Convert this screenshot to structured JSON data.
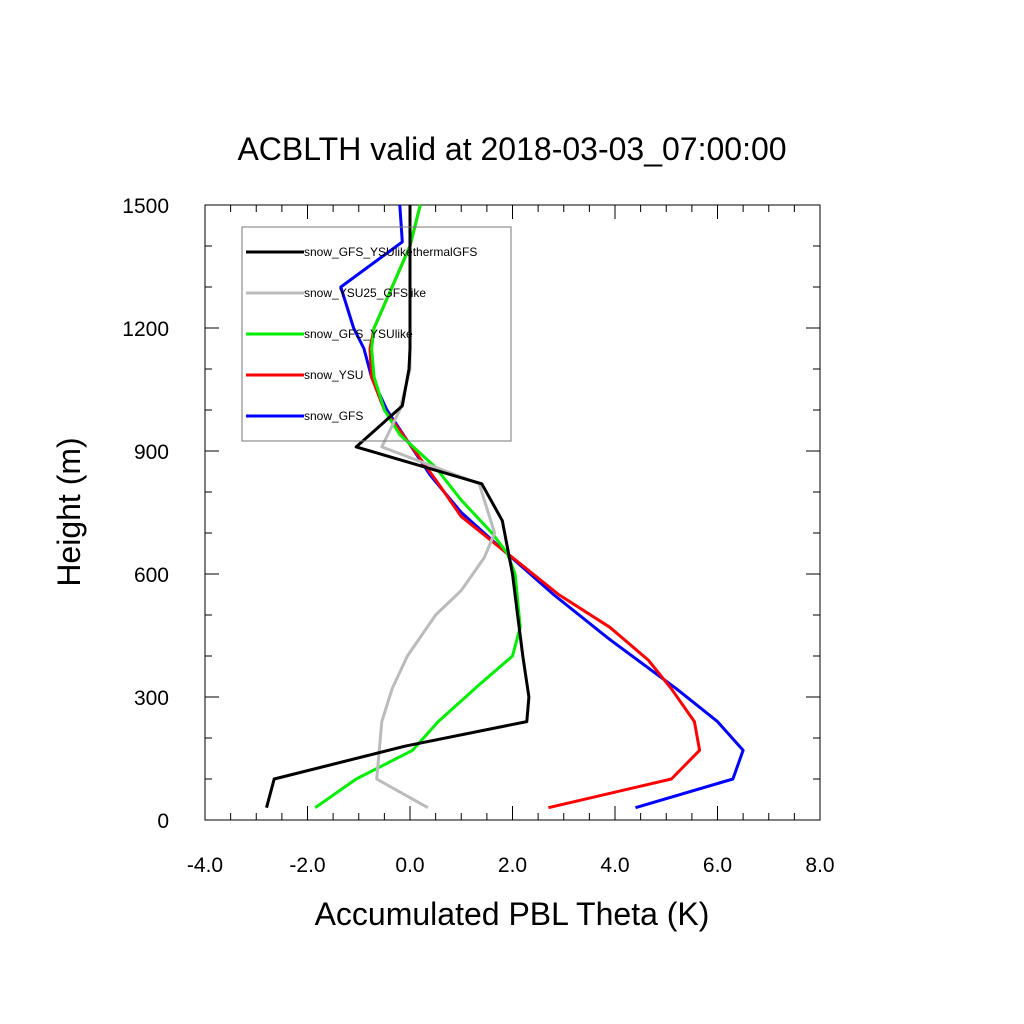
{
  "chart_data": {
    "type": "line",
    "title": "ACBLTH valid at 2018-03-03_07:00:00",
    "xlabel": "Accumulated PBL Theta (K)",
    "ylabel": "Height (m)",
    "xlim": [
      -4.0,
      8.0
    ],
    "ylim": [
      0,
      1500
    ],
    "xticks": [
      "-4.0",
      "-2.0",
      "0.0",
      "2.0",
      "4.0",
      "6.0",
      "8.0"
    ],
    "yticks": [
      "0",
      "300",
      "600",
      "900",
      "1200",
      "1500"
    ],
    "grid": false,
    "legend_position": "top-left",
    "series": [
      {
        "name": "snow_GFS_YSUlikethermalGFS",
        "color": "#000000",
        "x": [
          -2.8,
          -2.65,
          -0.1,
          2.28,
          2.32,
          2.2,
          2.1,
          2.0,
          1.8,
          1.4,
          -1.05,
          -0.15,
          -0.02,
          0.0,
          0.0,
          0.0,
          0.0,
          0.0,
          0.0
        ],
        "y": [
          30,
          100,
          180,
          240,
          300,
          400,
          500,
          600,
          730,
          820,
          910,
          1010,
          1100,
          1150,
          1200,
          1300,
          1400,
          1450,
          1500
        ]
      },
      {
        "name": "snow_YSU25_GFSlike",
        "color": "#bbbbbb",
        "x": [
          0.35,
          -0.65,
          -0.55,
          -0.35,
          -0.05,
          0.5,
          1.0,
          1.45,
          1.65,
          1.35,
          -0.55,
          -0.2,
          0.0,
          0.0,
          0.0,
          0.0,
          0.0
        ],
        "y": [
          30,
          100,
          240,
          320,
          400,
          500,
          560,
          640,
          700,
          820,
          910,
          1000,
          1100,
          1200,
          1300,
          1400,
          1500
        ]
      },
      {
        "name": "snow_GFS_YSUlike",
        "color": "#00ee00",
        "x": [
          -1.85,
          -1.05,
          0.05,
          0.55,
          1.35,
          2.0,
          2.15,
          2.05,
          1.9,
          1.6,
          1.0,
          0.5,
          -0.2,
          -0.5,
          -0.7,
          -0.75,
          -0.7,
          -0.35,
          0.0,
          0.2
        ],
        "y": [
          30,
          100,
          170,
          240,
          330,
          400,
          470,
          600,
          650,
          700,
          780,
          860,
          940,
          1000,
          1080,
          1150,
          1200,
          1300,
          1400,
          1500
        ]
      },
      {
        "name": "snow_YSU",
        "color": "#ff0000",
        "x": [
          2.7,
          5.1,
          5.65,
          5.55,
          5.1,
          4.65,
          3.9,
          2.9,
          2.0,
          1.0,
          0.5,
          -0.2,
          -0.5,
          -0.75,
          -0.78,
          -0.7,
          -0.35,
          0.0,
          0.2
        ],
        "y": [
          30,
          100,
          170,
          240,
          320,
          390,
          470,
          550,
          640,
          740,
          830,
          950,
          1000,
          1080,
          1150,
          1200,
          1300,
          1400,
          1500
        ]
      },
      {
        "name": "snow_GFS",
        "color": "#0000ff",
        "x": [
          4.4,
          6.3,
          6.5,
          6.0,
          5.2,
          3.9,
          2.8,
          1.8,
          1.0,
          0.4,
          -0.45,
          -0.75,
          -0.9,
          -1.1,
          -1.35,
          -0.15,
          -0.2
        ],
        "y": [
          30,
          100,
          170,
          240,
          320,
          440,
          550,
          660,
          750,
          840,
          1000,
          1080,
          1150,
          1200,
          1300,
          1410,
          1500
        ]
      }
    ]
  }
}
